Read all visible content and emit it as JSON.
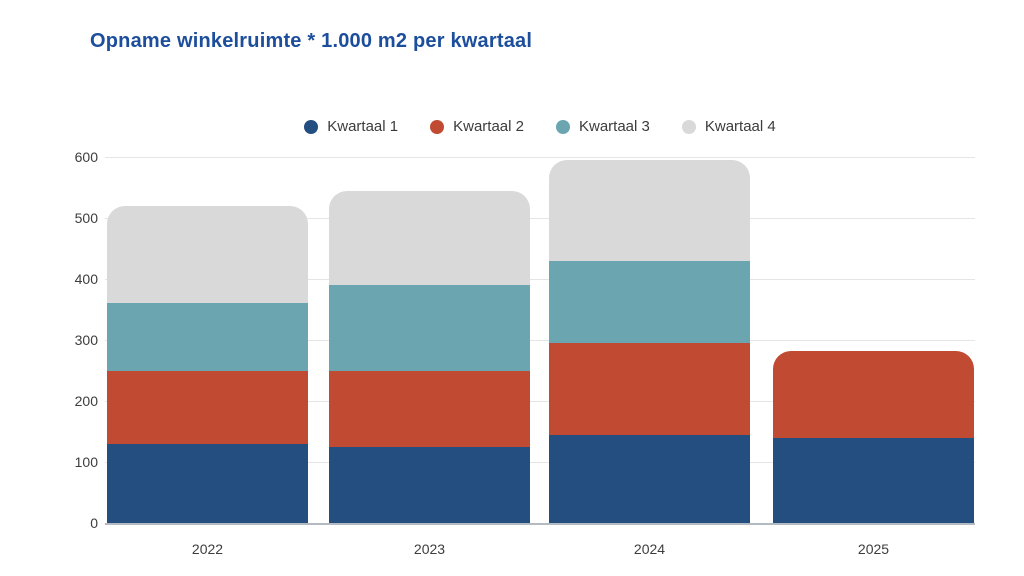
{
  "header": {
    "title": "Opname winkelruimte * 1.000 m2 per kwartaal",
    "title_color": "#1c4e9c"
  },
  "chart_data": {
    "type": "bar",
    "stacked": true,
    "title": "Opname winkelruimte * 1.000 m2 per kwartaal",
    "categories": [
      "2022",
      "2023",
      "2024",
      "2025"
    ],
    "series": [
      {
        "name": "Kwartaal 1",
        "color": "#234e7f",
        "values": [
          130,
          125,
          145,
          140
        ]
      },
      {
        "name": "Kwartaal 2",
        "color": "#c04b32",
        "values": [
          120,
          125,
          150,
          142
        ]
      },
      {
        "name": "Kwartaal 3",
        "color": "#6ba6b0",
        "values": [
          110,
          140,
          135,
          0
        ]
      },
      {
        "name": "Kwartaal 4",
        "color": "#d9d9d9",
        "values": [
          160,
          155,
          165,
          0
        ]
      }
    ],
    "stack_totals": [
      520,
      545,
      595,
      282
    ],
    "xlabel": "",
    "ylabel": "",
    "ylim": [
      0,
      600
    ],
    "yticks": [
      0,
      100,
      200,
      300,
      400,
      500,
      600
    ],
    "grid": true,
    "legend_position": "top-center",
    "bar_style": "rounded-top-corners",
    "axis_text_color": "#3d3d3d",
    "gridline_color": "#e5e5e5",
    "baseline_color": "#b3bac1",
    "background_color": "#ffffff"
  }
}
